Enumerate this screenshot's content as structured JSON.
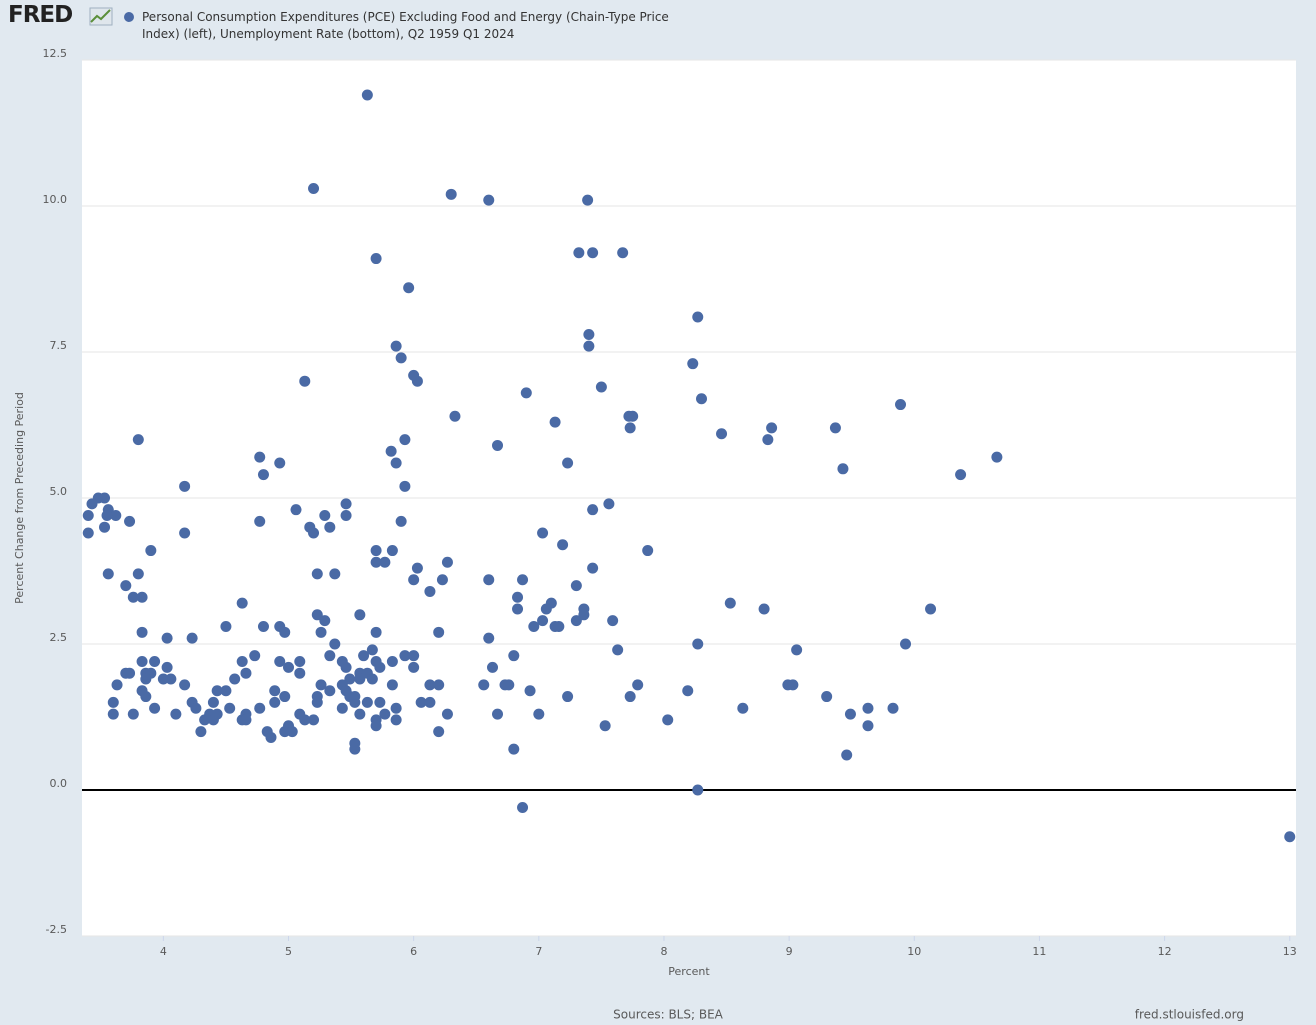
{
  "logo": "FRED",
  "sources": "Sources: BLS; BEA",
  "site": "fred.stlouisfed.org",
  "chart_data": {
    "type": "scatter",
    "xlabel": "Percent",
    "ylabel": "Percent Change from Preceding Period",
    "xlim": [
      3.35,
      13.05
    ],
    "ylim": [
      -2.5,
      12.5
    ],
    "xticks": [
      4,
      5,
      6,
      7,
      8,
      9,
      10,
      11,
      12,
      13
    ],
    "yticks": [
      12.5,
      {
        "value": 10,
        "label": "10.0"
      },
      7.5,
      {
        "value": 5,
        "label": "5.0"
      },
      2.5,
      {
        "value": 0,
        "label": "0.0"
      },
      -2.5
    ],
    "grid": true,
    "x": [
      5.63,
      5.2,
      6.3,
      6.6,
      7.39,
      7.32,
      7.43,
      7.67,
      5.7,
      5.96,
      8.27,
      7.4,
      7.4,
      5.86,
      5.9,
      8.23,
      6.0,
      6.03,
      5.13,
      7.5,
      6.9,
      8.3,
      9.89,
      6.33,
      7.72,
      7.75,
      7.13,
      7.73,
      8.86,
      9.37,
      8.46,
      8.83,
      3.8,
      5.93,
      6.67,
      5.82,
      4.77,
      10.66,
      4.93,
      5.86,
      7.23,
      9.43,
      4.8,
      10.37,
      4.17,
      5.93,
      3.48,
      3.53,
      3.43,
      5.46,
      7.56,
      3.4,
      3.56,
      3.62,
      3.55,
      5.06,
      7.43,
      5.29,
      5.46,
      3.73,
      4.77,
      5.9,
      3.53,
      5.17,
      5.33,
      3.4,
      4.17,
      5.2,
      7.03,
      7.19,
      3.9,
      5.7,
      5.83,
      7.87,
      5.7,
      5.77,
      6.27,
      6.03,
      7.43,
      3.56,
      3.8,
      5.23,
      5.37,
      6.0,
      6.23,
      6.6,
      6.87,
      3.7,
      7.3,
      6.13,
      3.76,
      3.83,
      6.83,
      4.63,
      7.1,
      8.53,
      6.83,
      7.06,
      7.36,
      8.8,
      10.13,
      5.23,
      5.57,
      7.36,
      5.29,
      7.03,
      7.3,
      7.59,
      4.5,
      4.8,
      4.93,
      6.96,
      7.13,
      7.16,
      3.83,
      4.97,
      5.26,
      5.7,
      6.2,
      4.03,
      4.23,
      6.6,
      5.37,
      8.27,
      9.93,
      7.63,
      5.67,
      9.06,
      4.73,
      5.33,
      5.6,
      5.93,
      6.0,
      6.8,
      3.83,
      3.93,
      4.63,
      4.93,
      5.09,
      5.43,
      5.7,
      5.83,
      4.03,
      5.0,
      5.46,
      5.73,
      6.0,
      6.63,
      3.7,
      3.73,
      3.86,
      3.9,
      4.66,
      5.09,
      5.57,
      5.63,
      3.86,
      4.0,
      4.06,
      4.57,
      5.49,
      5.57,
      5.67,
      3.63,
      4.17,
      5.26,
      5.43,
      5.83,
      6.13,
      6.2,
      6.56,
      6.73,
      6.76,
      7.79,
      8.99,
      9.03,
      3.83,
      4.43,
      4.5,
      4.89,
      5.33,
      5.46,
      6.93,
      8.19,
      3.86,
      4.97,
      5.23,
      5.49,
      5.53,
      7.23,
      7.73,
      9.3,
      3.6,
      4.23,
      4.4,
      4.89,
      5.23,
      5.53,
      5.63,
      5.73,
      6.06,
      6.13,
      3.93,
      4.26,
      4.53,
      4.77,
      5.43,
      5.86,
      8.63,
      9.63,
      9.83,
      3.6,
      3.76,
      4.1,
      4.37,
      4.43,
      4.66,
      5.09,
      5.57,
      5.77,
      6.27,
      6.67,
      7.0,
      9.49,
      4.33,
      4.4,
      4.63,
      4.66,
      5.13,
      5.2,
      5.7,
      5.86,
      8.03,
      5.0,
      5.7,
      7.53,
      9.63,
      4.3,
      4.83,
      4.97,
      5.03,
      6.2,
      4.86,
      5.53,
      5.53,
      6.8,
      9.46,
      8.27,
      6.87,
      13.0
    ],
    "series": [
      {
        "name": "Personal Consumption Expenditures (PCE) Excluding Food and Energy (Chain-Type Price Index) (left), Unemployment Rate (bottom), Q2 1959 Q1 2024",
        "color": "#4a6aa5",
        "values": [
          11.9,
          10.3,
          10.2,
          10.1,
          10.1,
          9.2,
          9.2,
          9.2,
          9.1,
          8.6,
          8.1,
          7.8,
          7.6,
          7.6,
          7.4,
          7.3,
          7.1,
          7.0,
          7.0,
          6.9,
          6.8,
          6.7,
          6.6,
          6.4,
          6.4,
          6.4,
          6.3,
          6.2,
          6.2,
          6.2,
          6.1,
          6.0,
          6.0,
          6.0,
          5.9,
          5.8,
          5.7,
          5.7,
          5.6,
          5.6,
          5.6,
          5.5,
          5.4,
          5.4,
          5.2,
          5.2,
          5.0,
          5.0,
          4.9,
          4.9,
          4.9,
          4.7,
          4.8,
          4.7,
          4.7,
          4.8,
          4.8,
          4.7,
          4.7,
          4.6,
          4.6,
          4.6,
          4.5,
          4.5,
          4.5,
          4.4,
          4.4,
          4.4,
          4.4,
          4.2,
          4.1,
          4.1,
          4.1,
          4.1,
          3.9,
          3.9,
          3.9,
          3.8,
          3.8,
          3.7,
          3.7,
          3.7,
          3.7,
          3.6,
          3.6,
          3.6,
          3.6,
          3.5,
          3.5,
          3.4,
          3.3,
          3.3,
          3.3,
          3.2,
          3.2,
          3.2,
          3.1,
          3.1,
          3.1,
          3.1,
          3.1,
          3.0,
          3.0,
          3.0,
          2.9,
          2.9,
          2.9,
          2.9,
          2.8,
          2.8,
          2.8,
          2.8,
          2.8,
          2.8,
          2.7,
          2.7,
          2.7,
          2.7,
          2.7,
          2.6,
          2.6,
          2.6,
          2.5,
          2.5,
          2.5,
          2.4,
          2.4,
          2.4,
          2.3,
          2.3,
          2.3,
          2.3,
          2.3,
          2.3,
          2.2,
          2.2,
          2.2,
          2.2,
          2.2,
          2.2,
          2.2,
          2.2,
          2.1,
          2.1,
          2.1,
          2.1,
          2.1,
          2.1,
          2.0,
          2.0,
          2.0,
          2.0,
          2.0,
          2.0,
          2.0,
          2.0,
          1.9,
          1.9,
          1.9,
          1.9,
          1.9,
          1.9,
          1.9,
          1.8,
          1.8,
          1.8,
          1.8,
          1.8,
          1.8,
          1.8,
          1.8,
          1.8,
          1.8,
          1.8,
          1.8,
          1.8,
          1.7,
          1.7,
          1.7,
          1.7,
          1.7,
          1.7,
          1.7,
          1.7,
          1.6,
          1.6,
          1.6,
          1.6,
          1.6,
          1.6,
          1.6,
          1.6,
          1.5,
          1.5,
          1.5,
          1.5,
          1.5,
          1.5,
          1.5,
          1.5,
          1.5,
          1.5,
          1.4,
          1.4,
          1.4,
          1.4,
          1.4,
          1.4,
          1.4,
          1.4,
          1.4,
          1.3,
          1.3,
          1.3,
          1.3,
          1.3,
          1.3,
          1.3,
          1.3,
          1.3,
          1.3,
          1.3,
          1.3,
          1.3,
          1.2,
          1.2,
          1.2,
          1.2,
          1.2,
          1.2,
          1.2,
          1.2,
          1.2,
          1.1,
          1.1,
          1.1,
          1.1,
          1.0,
          1.0,
          1.0,
          1.0,
          1.0,
          0.9,
          0.8,
          0.7,
          0.7,
          0.6,
          0.0,
          -0.3,
          -0.8
        ]
      }
    ]
  }
}
